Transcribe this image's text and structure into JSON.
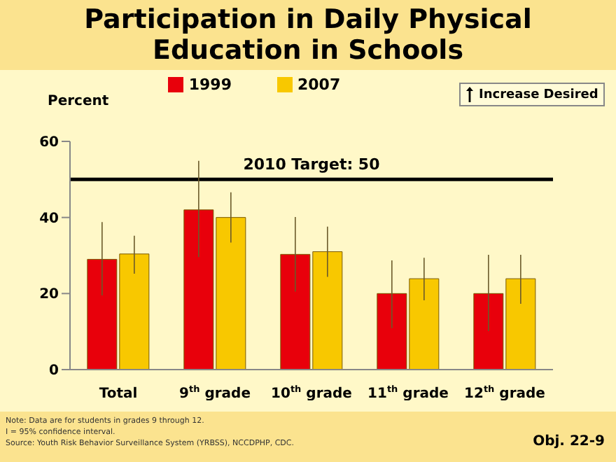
{
  "chart_data": {
    "type": "bar",
    "title": "Participation in Daily Physical Education in Schools",
    "ylabel": "Percent",
    "categories": [
      "Total",
      "9$^{th}$ grade",
      "10$^{th}$ grade",
      "11$^{th}$ grade",
      "12$^{th}$ grade"
    ],
    "series": [
      {
        "name": "1999",
        "color": "#e8000b",
        "values": [
          29,
          42,
          30.3,
          20,
          20
        ],
        "errors": [
          [
            19.5,
            38.8
          ],
          [
            29.6,
            54.9
          ],
          [
            20.5,
            40.1
          ],
          [
            10.9,
            28.7
          ],
          [
            10.1,
            30.2
          ]
        ]
      },
      {
        "name": "2007",
        "color": "#f8c800",
        "values": [
          30.4,
          40,
          31,
          23.9,
          23.9
        ],
        "errors": [
          [
            25.2,
            35.2
          ],
          [
            33.4,
            46.6
          ],
          [
            24.4,
            37.6
          ],
          [
            18.2,
            29.4
          ],
          [
            17.3,
            30.2
          ]
        ]
      }
    ],
    "ylim": [
      0,
      60
    ],
    "yticks": [
      0,
      20,
      40,
      60
    ],
    "grid": false,
    "legend": "top",
    "ref_lines": [
      {
        "axis": "y",
        "value": 50,
        "label": "2010 Target: 50",
        "color": "#000000"
      }
    ],
    "annotations": [
      "Increase Desired",
      "Note:  Data are for students in grades 9 through 12.",
      "I = 95% confidence interval.",
      "Source: Youth Risk Behavior Surveillance System (YRBSS), NCCDPHP, CDC.",
      "Obj. 22-9"
    ]
  }
}
